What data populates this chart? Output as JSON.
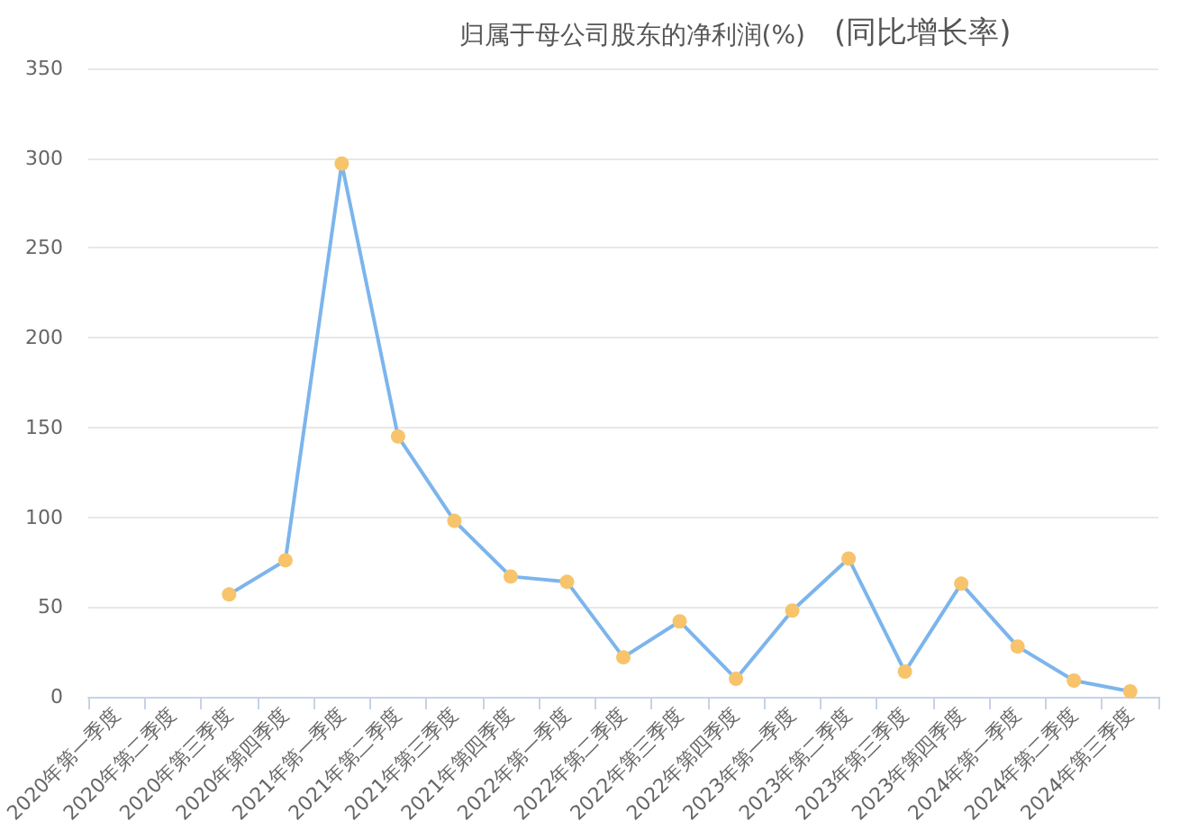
{
  "chart_data": {
    "type": "line",
    "title": "归属于母公司股东的净利润(%)",
    "subtitle": "(同比增长率)",
    "categories": [
      "2020年第一季度",
      "2020年第二季度",
      "2020年第三季度",
      "2020年第四季度",
      "2021年第一季度",
      "2021年第二季度",
      "2021年第三季度",
      "2021年第四季度",
      "2022年第一季度",
      "2022年第二季度",
      "2022年第三季度",
      "2022年第四季度",
      "2023年第一季度",
      "2023年第二季度",
      "2023年第三季度",
      "2023年第四季度",
      "2024年第一季度",
      "2024年第二季度",
      "2024年第三季度"
    ],
    "series": [
      {
        "color": "#7cb5ec",
        "colors": [
          "#f7c46c",
          "#f7c46c",
          "#f7c46c",
          "#f7c46c",
          "#f7c46c",
          "#f7c46c",
          "#f7c46c",
          "#f7c46c",
          "#f7c46c",
          "#f7c46c",
          "#f7c46c",
          "#f7c46c",
          "#f7c46c",
          "#f7c46c",
          "#f7c46c",
          "#f7c46c",
          "#f7c46c",
          "#f7c46c",
          "#f7c46c"
        ],
        "values": [
          null,
          null,
          57,
          76,
          297,
          145,
          98,
          67,
          64,
          22,
          42,
          10,
          48,
          77,
          14,
          63,
          28,
          9,
          3
        ]
      }
    ],
    "ylim": [
      0,
      350
    ],
    "yticks": [
      0,
      50,
      100,
      150,
      200,
      250,
      300,
      350
    ],
    "grid": "y",
    "marker": "circle",
    "line_style": "solid"
  }
}
